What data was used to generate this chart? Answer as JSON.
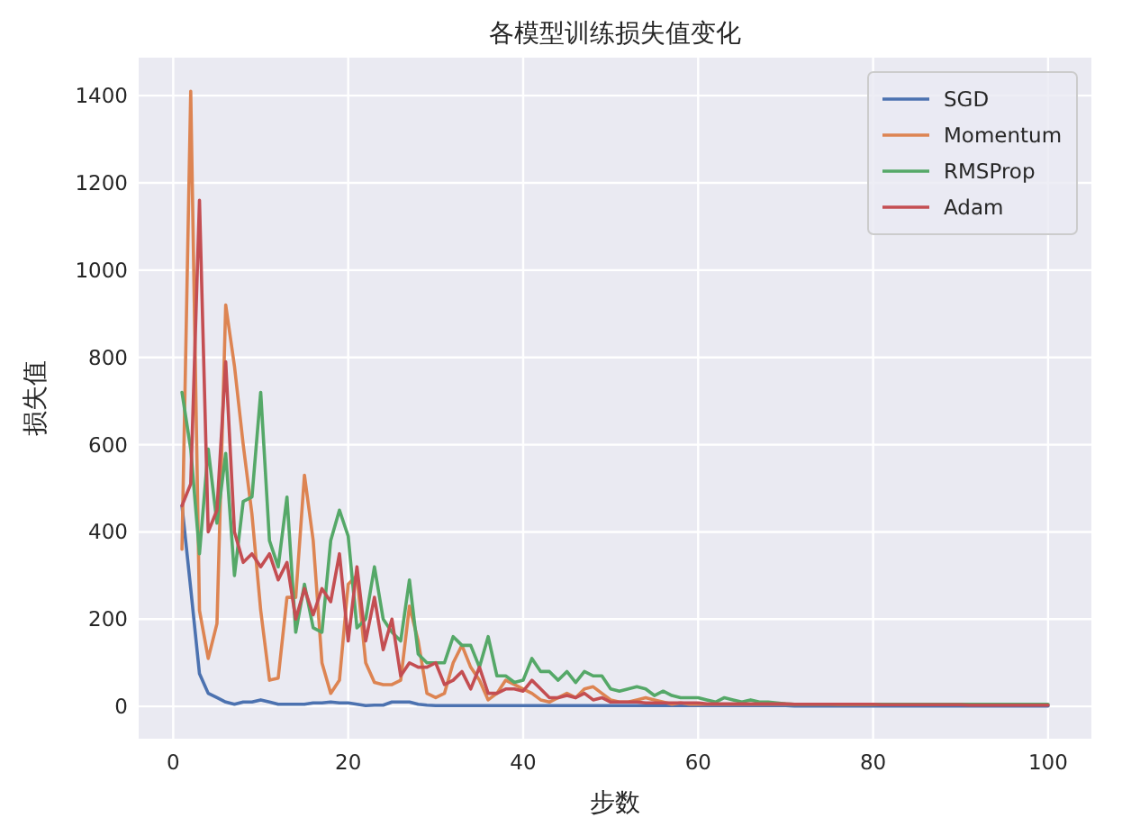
{
  "chart_data": {
    "type": "line",
    "title": "各模型训练损失值变化",
    "xlabel": "步数",
    "ylabel": "损失值",
    "x": [
      1,
      2,
      3,
      4,
      5,
      6,
      7,
      8,
      9,
      10,
      11,
      12,
      13,
      14,
      15,
      16,
      17,
      18,
      19,
      20,
      21,
      22,
      23,
      24,
      25,
      26,
      27,
      28,
      29,
      30,
      31,
      32,
      33,
      34,
      35,
      36,
      37,
      38,
      39,
      40,
      41,
      42,
      43,
      44,
      45,
      46,
      47,
      48,
      49,
      50,
      51,
      52,
      53,
      54,
      55,
      56,
      57,
      58,
      59,
      60,
      61,
      62,
      63,
      64,
      65,
      66,
      67,
      68,
      69,
      70,
      71,
      72,
      73,
      74,
      75,
      76,
      77,
      78,
      79,
      80,
      81,
      82,
      83,
      84,
      85,
      86,
      87,
      88,
      89,
      90,
      91,
      92,
      93,
      94,
      95,
      96,
      97,
      98,
      99,
      100
    ],
    "series": [
      {
        "name": "SGD",
        "color": "#4c72b0",
        "values": [
          460,
          270,
          75,
          30,
          20,
          10,
          5,
          10,
          10,
          15,
          10,
          5,
          5,
          5,
          5,
          8,
          8,
          10,
          8,
          8,
          5,
          2,
          3,
          3,
          10,
          10,
          10,
          5,
          3,
          2,
          2,
          2,
          2,
          2,
          2,
          2,
          2,
          2,
          2,
          2,
          2,
          2,
          2,
          2,
          2,
          2,
          2,
          2,
          2,
          2,
          2,
          2,
          2,
          2,
          2,
          2,
          2,
          2,
          2,
          2,
          2,
          2,
          2,
          2,
          2,
          2,
          2,
          2,
          2,
          2,
          1,
          1,
          1,
          1,
          1,
          1,
          1,
          1,
          1,
          1,
          1,
          1,
          1,
          1,
          1,
          1,
          1,
          1,
          1,
          1,
          1,
          1,
          1,
          1,
          1,
          1,
          1,
          1,
          1,
          1
        ]
      },
      {
        "name": "Momentum",
        "color": "#dd8452",
        "values": [
          360,
          1410,
          220,
          110,
          190,
          920,
          780,
          600,
          440,
          220,
          60,
          65,
          250,
          250,
          530,
          380,
          100,
          30,
          60,
          280,
          300,
          100,
          55,
          50,
          50,
          60,
          230,
          150,
          30,
          20,
          30,
          100,
          140,
          90,
          60,
          15,
          30,
          60,
          50,
          40,
          30,
          15,
          10,
          20,
          30,
          20,
          40,
          45,
          30,
          15,
          10,
          10,
          15,
          20,
          15,
          10,
          5,
          8,
          5,
          5,
          5,
          5,
          5,
          5,
          5,
          5,
          5,
          5,
          5,
          5,
          5,
          5,
          5,
          5,
          5,
          4,
          4,
          4,
          4,
          4,
          4,
          4,
          null,
          null,
          null,
          null,
          null,
          null,
          null,
          null,
          null,
          null,
          null,
          null,
          null,
          null,
          null,
          null,
          null,
          null
        ]
      },
      {
        "name": "RMSProp",
        "color": "#55a868",
        "values": [
          720,
          590,
          350,
          590,
          420,
          580,
          300,
          470,
          480,
          720,
          380,
          320,
          480,
          170,
          280,
          180,
          170,
          380,
          450,
          390,
          180,
          200,
          320,
          200,
          170,
          150,
          290,
          120,
          100,
          100,
          100,
          160,
          140,
          140,
          90,
          160,
          70,
          70,
          55,
          60,
          110,
          80,
          80,
          60,
          80,
          55,
          80,
          70,
          70,
          40,
          35,
          40,
          45,
          40,
          25,
          35,
          25,
          20,
          20,
          20,
          15,
          10,
          20,
          15,
          10,
          15,
          10,
          10,
          8,
          6,
          5,
          5,
          5,
          5,
          5,
          5,
          5,
          5,
          5,
          5,
          5,
          5,
          5,
          5,
          5,
          5,
          5,
          5,
          5,
          5,
          5,
          5,
          5,
          5,
          5,
          5,
          5,
          5,
          5,
          5
        ]
      },
      {
        "name": "Adam",
        "color": "#c44e52",
        "values": [
          460,
          510,
          1160,
          400,
          450,
          790,
          400,
          330,
          350,
          320,
          350,
          290,
          330,
          200,
          270,
          210,
          270,
          240,
          350,
          150,
          320,
          150,
          250,
          130,
          200,
          70,
          100,
          90,
          90,
          100,
          50,
          60,
          80,
          40,
          90,
          30,
          30,
          40,
          40,
          35,
          60,
          40,
          20,
          20,
          25,
          20,
          30,
          15,
          20,
          10,
          10,
          10,
          10,
          8,
          8,
          8,
          8,
          8,
          8,
          8,
          6,
          6,
          6,
          6,
          6,
          6,
          6,
          6,
          6,
          6,
          5,
          5,
          5,
          5,
          5,
          5,
          5,
          5,
          5,
          5,
          4,
          4,
          4,
          4,
          4,
          4,
          4,
          4,
          4,
          4,
          3,
          3,
          3,
          3,
          3,
          3,
          3,
          3,
          3,
          3
        ]
      }
    ],
    "xlim": [
      -3.95,
      104.95
    ],
    "ylim": [
      -74,
      1487
    ],
    "xticks": [
      0,
      20,
      40,
      60,
      80,
      100
    ],
    "yticks": [
      0,
      200,
      400,
      600,
      800,
      1000,
      1200,
      1400
    ],
    "grid": true,
    "legend": "top right"
  }
}
